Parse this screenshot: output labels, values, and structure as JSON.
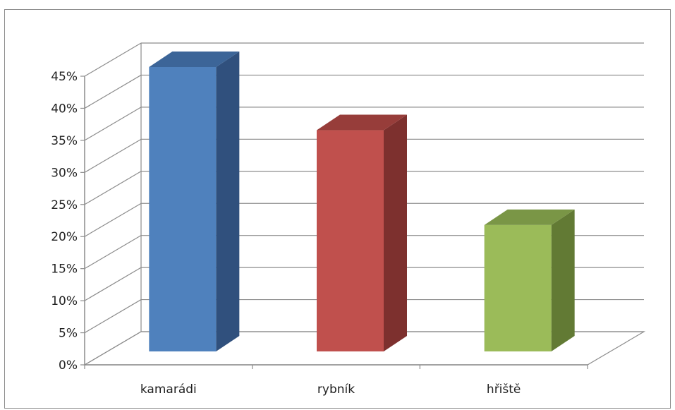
{
  "chart_data": {
    "type": "bar",
    "style": "3d-column",
    "categories": [
      "kamarádi",
      "rybník",
      "hřiště"
    ],
    "values": [
      45,
      35,
      20
    ],
    "unit": "%",
    "colors": [
      "#4F81BD",
      "#C0504D",
      "#9BBB59"
    ],
    "side_colors": [
      "#30507D",
      "#7D302E",
      "#627A34"
    ],
    "top_colors": [
      "#3C6598",
      "#973D3A",
      "#7A9646"
    ],
    "ylim": [
      0,
      45
    ],
    "ytick_values": [
      0,
      5,
      10,
      15,
      20,
      25,
      30,
      35,
      40,
      45
    ],
    "ytick_labels": [
      "0%",
      "5%",
      "10%",
      "15%",
      "20%",
      "25%",
      "30%",
      "35%",
      "40%",
      "45%"
    ],
    "grid": true,
    "legend": "none",
    "title": "",
    "xlabel": "",
    "ylabel": ""
  }
}
